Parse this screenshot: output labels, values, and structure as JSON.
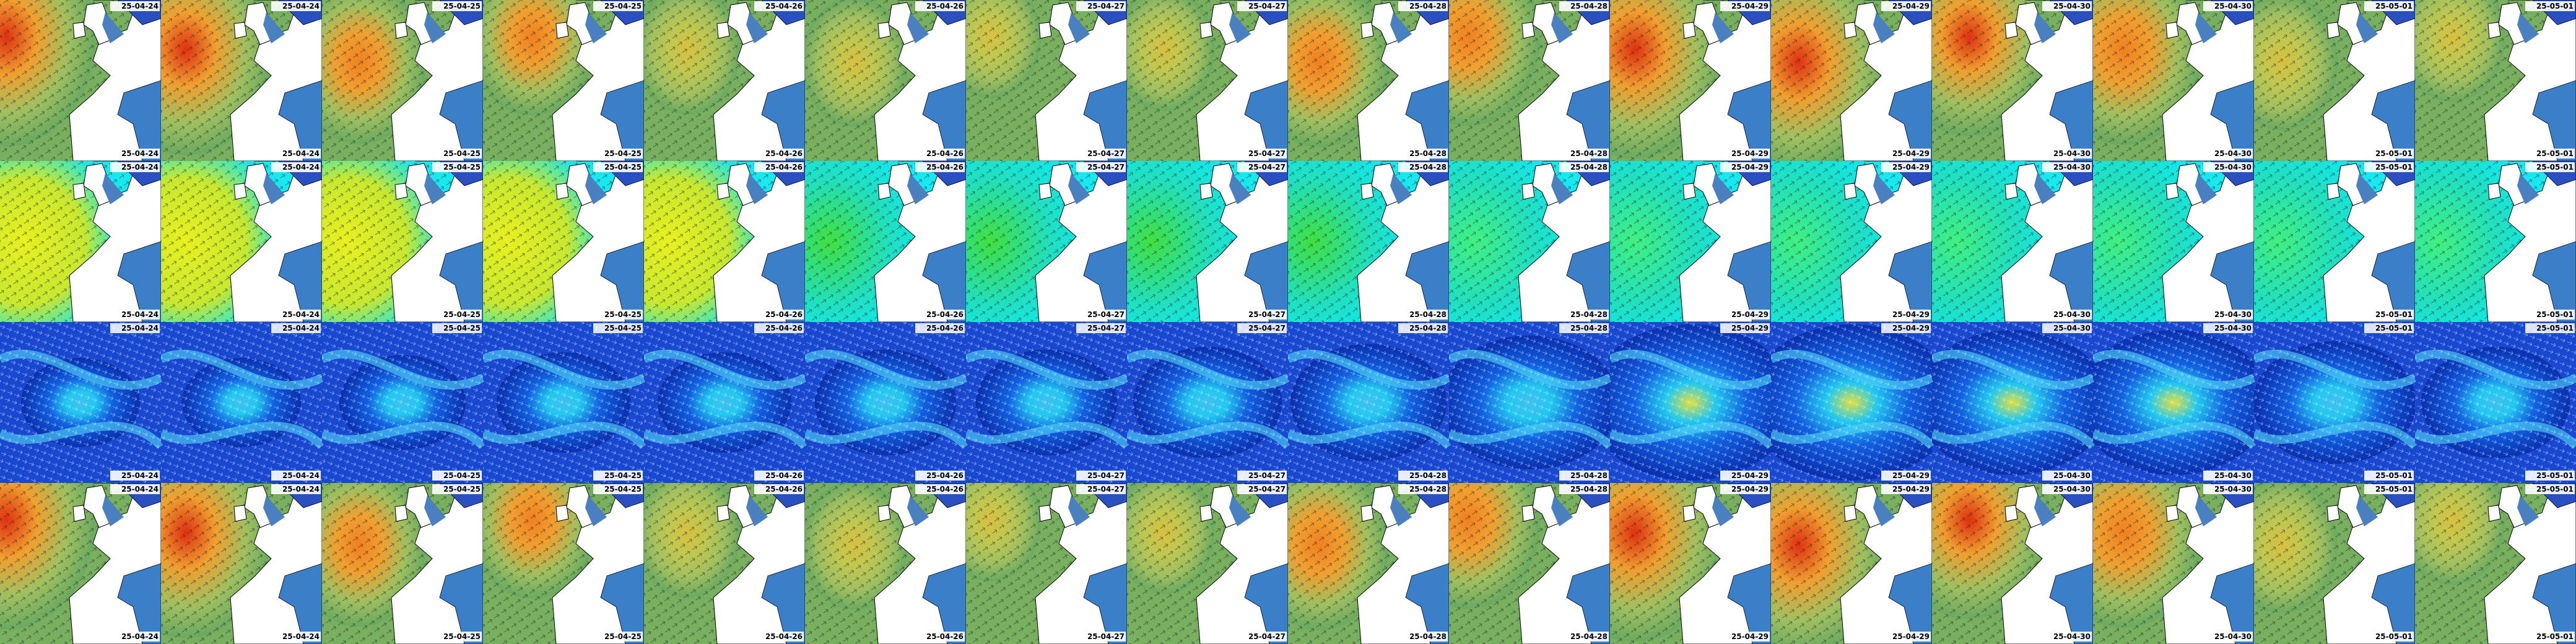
{
  "columns": [
    "25-04-24",
    "25-04-24",
    "25-04-25",
    "25-04-25",
    "25-04-26",
    "25-04-26",
    "25-04-27",
    "25-04-27",
    "25-04-28",
    "25-04-28",
    "25-04-29",
    "25-04-29",
    "25-04-30",
    "25-04-30",
    "25-05-01",
    "25-05-01"
  ]
}
